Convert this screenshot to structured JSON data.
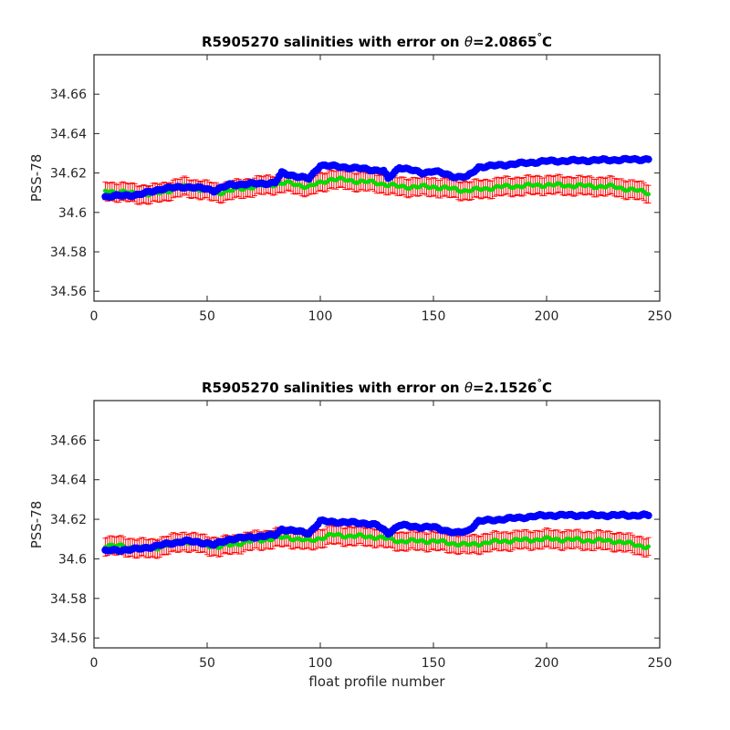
{
  "figure": {
    "background": "#ffffff",
    "colors": {
      "calibrated": "#0000ff",
      "uncalibrated": "#00dd00",
      "errorbar": "#ff0000",
      "axes": "#262626"
    }
  },
  "chart_data": [
    {
      "type": "scatter",
      "title_prefix": "R5905270 salinities with error on ",
      "theta_symbol": "θ",
      "theta_value": "=2.0865",
      "degree_symbol": "°",
      "unit": "C",
      "ylabel": "PSS-78",
      "xlabel": "",
      "xlim": [
        0,
        250
      ],
      "ylim": [
        34.555,
        34.68
      ],
      "xticks": [
        0,
        50,
        100,
        150,
        200,
        250
      ],
      "xtick_labels": [
        "0",
        "50",
        "100",
        "150",
        "200",
        "250"
      ],
      "yticks": [
        34.56,
        34.58,
        34.6,
        34.62,
        34.64,
        34.66
      ],
      "ytick_labels": [
        "34.56",
        "34.58",
        "34.6",
        "34.62",
        "34.64",
        "34.66"
      ],
      "profiles": {
        "start": 5,
        "end": 245
      },
      "series": [
        {
          "key": "calibrated",
          "marker": "filled-circle",
          "control_points": [
            [
              5,
              34.608
            ],
            [
              20,
              34.609
            ],
            [
              30,
              34.612
            ],
            [
              40,
              34.613
            ],
            [
              50,
              34.612
            ],
            [
              53,
              34.611
            ],
            [
              60,
              34.614
            ],
            [
              80,
              34.615
            ],
            [
              83,
              34.62
            ],
            [
              95,
              34.617
            ],
            [
              100,
              34.624
            ],
            [
              120,
              34.622
            ],
            [
              128,
              34.621
            ],
            [
              130,
              34.617
            ],
            [
              135,
              34.623
            ],
            [
              145,
              34.62
            ],
            [
              150,
              34.621
            ],
            [
              160,
              34.618
            ],
            [
              165,
              34.618
            ],
            [
              170,
              34.623
            ],
            [
              200,
              34.626
            ],
            [
              245,
              34.627
            ]
          ]
        },
        {
          "key": "uncalibrated",
          "marker": "filled-circle",
          "error": 0.0045,
          "control_points": [
            [
              5,
              34.611
            ],
            [
              25,
              34.609
            ],
            [
              40,
              34.613
            ],
            [
              55,
              34.61
            ],
            [
              70,
              34.613
            ],
            [
              85,
              34.615
            ],
            [
              95,
              34.613
            ],
            [
              105,
              34.617
            ],
            [
              125,
              34.615
            ],
            [
              135,
              34.613
            ],
            [
              150,
              34.613
            ],
            [
              165,
              34.611
            ],
            [
              180,
              34.613
            ],
            [
              200,
              34.614
            ],
            [
              230,
              34.613
            ],
            [
              245,
              34.61
            ]
          ]
        }
      ]
    },
    {
      "type": "scatter",
      "title_prefix": "R5905270 salinities with error on ",
      "theta_symbol": "θ",
      "theta_value": "=2.1526",
      "degree_symbol": "°",
      "unit": "C",
      "ylabel": "PSS-78",
      "xlabel": "float profile number",
      "xlim": [
        0,
        250
      ],
      "ylim": [
        34.555,
        34.68
      ],
      "xticks": [
        0,
        50,
        100,
        150,
        200,
        250
      ],
      "xtick_labels": [
        "0",
        "50",
        "100",
        "150",
        "200",
        "250"
      ],
      "yticks": [
        34.56,
        34.58,
        34.6,
        34.62,
        34.64,
        34.66
      ],
      "ytick_labels": [
        "34.56",
        "34.58",
        "34.6",
        "34.62",
        "34.64",
        "34.66"
      ],
      "profiles": {
        "start": 5,
        "end": 245
      },
      "series": [
        {
          "key": "calibrated",
          "marker": "filled-circle",
          "control_points": [
            [
              5,
              34.604
            ],
            [
              20,
              34.605
            ],
            [
              30,
              34.607
            ],
            [
              40,
              34.609
            ],
            [
              50,
              34.608
            ],
            [
              53,
              34.607
            ],
            [
              60,
              34.61
            ],
            [
              80,
              34.612
            ],
            [
              83,
              34.615
            ],
            [
              95,
              34.613
            ],
            [
              100,
              34.619
            ],
            [
              120,
              34.618
            ],
            [
              125,
              34.617
            ],
            [
              130,
              34.613
            ],
            [
              135,
              34.617
            ],
            [
              145,
              34.616
            ],
            [
              150,
              34.616
            ],
            [
              160,
              34.613
            ],
            [
              165,
              34.614
            ],
            [
              170,
              34.619
            ],
            [
              200,
              34.622
            ],
            [
              245,
              34.622
            ]
          ]
        },
        {
          "key": "uncalibrated",
          "marker": "filled-circle",
          "error": 0.0045,
          "control_points": [
            [
              5,
              34.607
            ],
            [
              25,
              34.605
            ],
            [
              40,
              34.609
            ],
            [
              55,
              34.606
            ],
            [
              70,
              34.609
            ],
            [
              85,
              34.611
            ],
            [
              95,
              34.609
            ],
            [
              105,
              34.612
            ],
            [
              125,
              34.611
            ],
            [
              135,
              34.609
            ],
            [
              150,
              34.609
            ],
            [
              165,
              34.607
            ],
            [
              180,
              34.609
            ],
            [
              200,
              34.61
            ],
            [
              230,
              34.609
            ],
            [
              245,
              34.606
            ]
          ]
        }
      ]
    }
  ]
}
